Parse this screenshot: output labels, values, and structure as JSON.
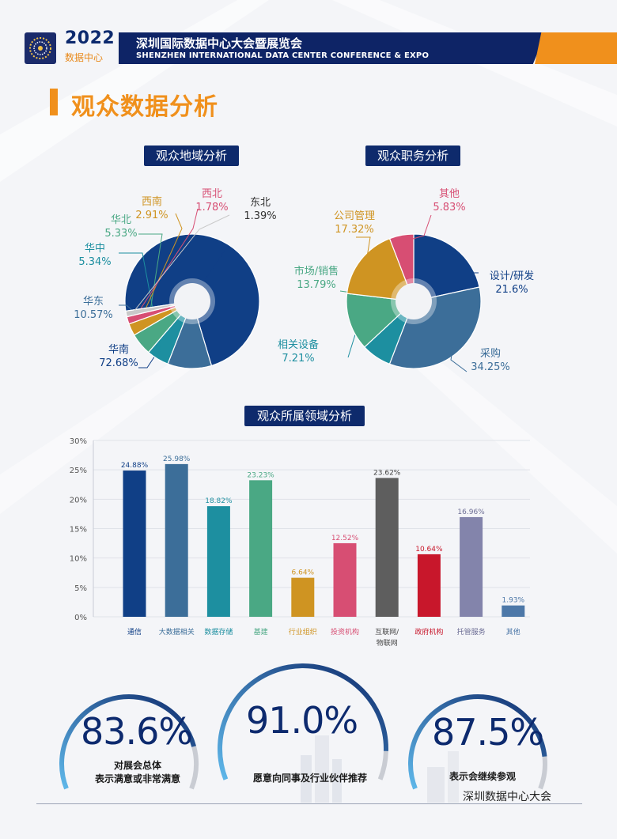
{
  "header": {
    "year": "2022",
    "subtitle": "数据中心",
    "title_cn": "深圳国际数据中心大会暨展览会",
    "title_en": "SHENZHEN INTERNATIONAL DATA CENTER CONFERENCE & EXPO"
  },
  "section_title": "观众数据分析",
  "colors": {
    "navy": "#0e2a6c",
    "orange": "#f0901c"
  },
  "chart_data": [
    {
      "type": "pie",
      "title": "观众地域分析",
      "slices": [
        {
          "label": "华南",
          "value": 72.68,
          "display": "72.68%",
          "color": "#103f86"
        },
        {
          "label": "华东",
          "value": 10.57,
          "display": "10.57%",
          "color": "#3c6e99"
        },
        {
          "label": "华中",
          "value": 5.34,
          "display": "5.34%",
          "color": "#1d8fa0"
        },
        {
          "label": "华北",
          "value": 5.33,
          "display": "5.33%",
          "color": "#4aa884"
        },
        {
          "label": "西南",
          "value": 2.91,
          "display": "2.91%",
          "color": "#cf9422"
        },
        {
          "label": "西北",
          "value": 1.78,
          "display": "1.78%",
          "color": "#d74e73"
        },
        {
          "label": "东北",
          "value": 1.39,
          "display": "1.39%",
          "color": "#c9c9c9"
        }
      ]
    },
    {
      "type": "pie",
      "title": "观众职务分析",
      "slices": [
        {
          "label": "设计/研发",
          "value": 21.6,
          "display": "21.6%",
          "color": "#103f86"
        },
        {
          "label": "采购",
          "value": 34.25,
          "display": "34.25%",
          "color": "#3c6e99"
        },
        {
          "label": "相关设备",
          "value": 7.21,
          "display": "7.21%",
          "color": "#1d8fa0"
        },
        {
          "label": "市场/销售",
          "value": 13.79,
          "display": "13.79%",
          "color": "#4aa884"
        },
        {
          "label": "公司管理",
          "value": 17.32,
          "display": "17.32%",
          "color": "#cf9422"
        },
        {
          "label": "其他",
          "value": 5.83,
          "display": "5.83%",
          "color": "#d74e73"
        }
      ]
    },
    {
      "type": "bar",
      "title": "观众所属领域分析",
      "ylim": [
        0,
        30
      ],
      "yticks": [
        "0%",
        "5%",
        "10%",
        "15%",
        "20%",
        "25%",
        "30%"
      ],
      "grid": true,
      "bars": [
        {
          "label": "通信",
          "value": 24.88,
          "display": "24.88%",
          "color": "#103f86",
          "label_color": "#103f86"
        },
        {
          "label": "大数据相关",
          "value": 25.98,
          "display": "25.98%",
          "color": "#3c6e99",
          "label_color": "#3c6e99"
        },
        {
          "label": "数据存储",
          "value": 18.82,
          "display": "18.82%",
          "color": "#1d8fa0",
          "label_color": "#1d8fa0"
        },
        {
          "label": "基建",
          "value": 23.23,
          "display": "23.23%",
          "color": "#4aa884",
          "label_color": "#4aa884"
        },
        {
          "label": "行业组织",
          "value": 6.64,
          "display": "6.64%",
          "color": "#cf9422",
          "label_color": "#cf9422"
        },
        {
          "label": "投资机构",
          "value": 12.52,
          "display": "12.52%",
          "color": "#d74e73",
          "label_color": "#d74e73"
        },
        {
          "label": "互联网/\n物联网",
          "value": 23.62,
          "display": "23.62%",
          "color": "#5e5e5e",
          "label_color": "#444444"
        },
        {
          "label": "政府机构",
          "value": 10.64,
          "display": "10.64%",
          "color": "#c8172b",
          "label_color": "#c8172b"
        },
        {
          "label": "托管服务",
          "value": 16.96,
          "display": "16.96%",
          "color": "#8384ab",
          "label_color": "#6d6e95"
        },
        {
          "label": "其他",
          "value": 1.93,
          "display": "1.93%",
          "color": "#4d78a8",
          "label_color": "#4d78a8"
        }
      ]
    }
  ],
  "stats": [
    {
      "value": "83.6%",
      "fraction": 0.836,
      "label": "对展会总体\n表示满意或非常满意"
    },
    {
      "value": "91.0%",
      "fraction": 0.91,
      "label": "愿意向同事及行业伙伴推荐"
    },
    {
      "value": "87.5%",
      "fraction": 0.875,
      "label": "表示会继续参观"
    }
  ],
  "footer": "深圳数据中心大会"
}
